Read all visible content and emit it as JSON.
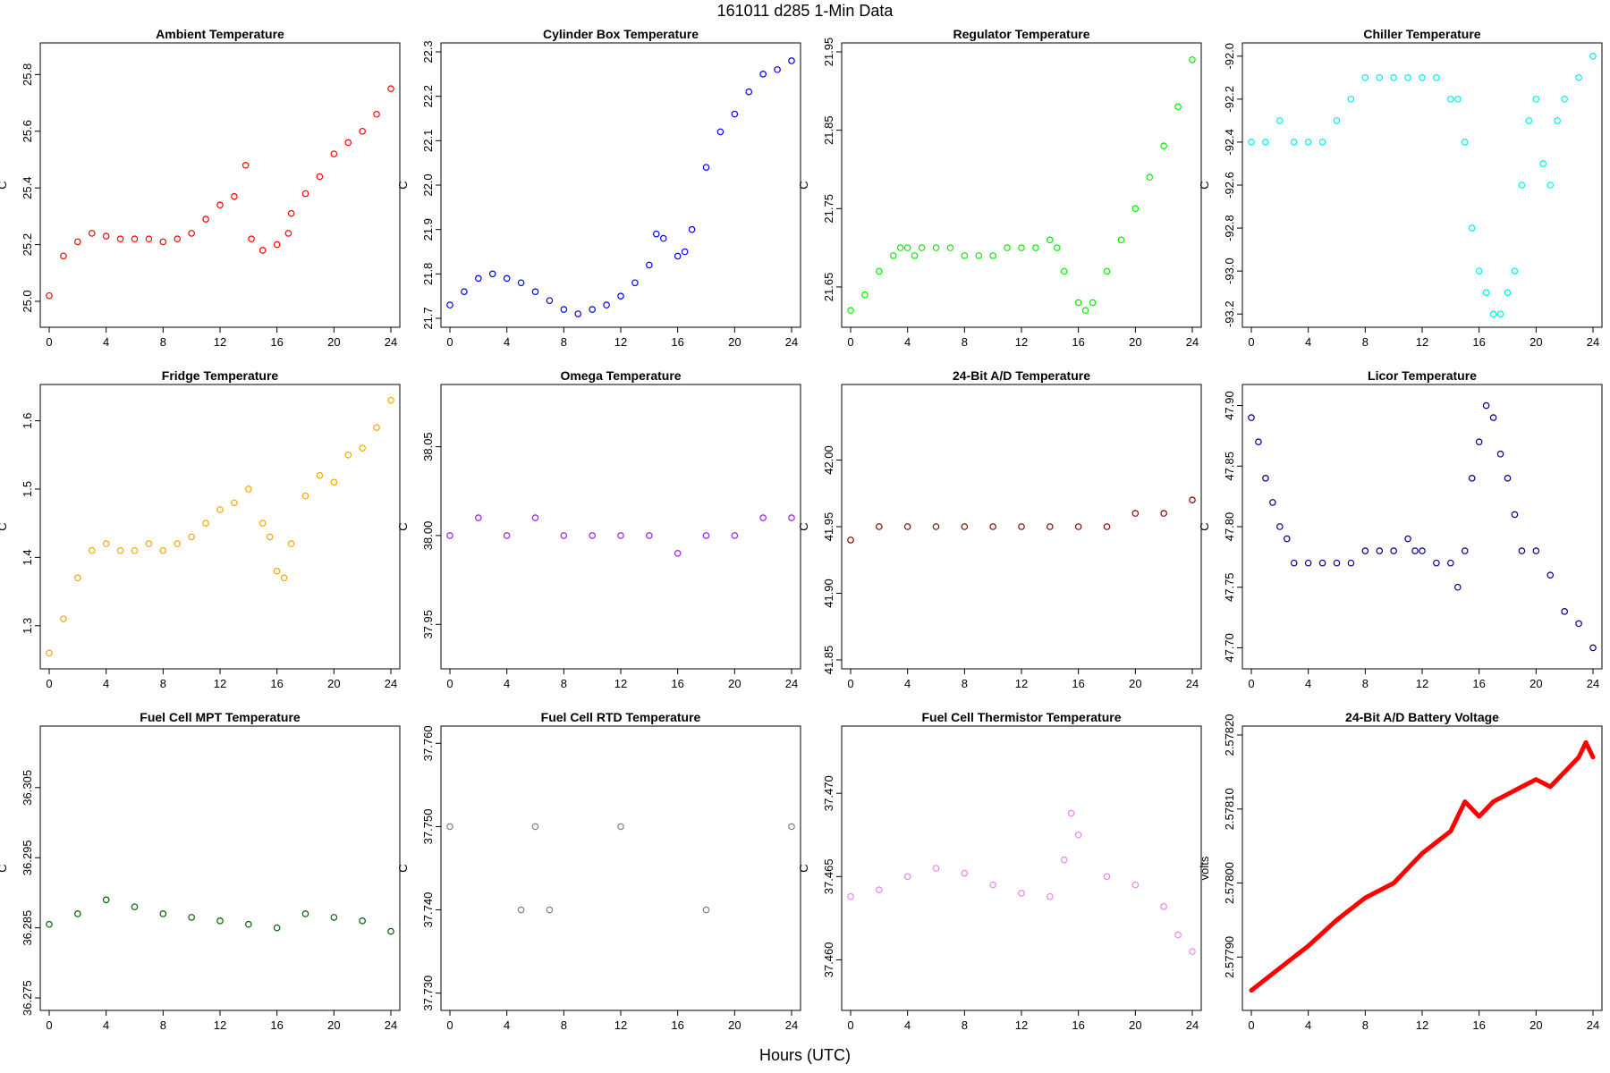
{
  "header": {
    "title": "161011    d285    1-Min Data"
  },
  "footer": {
    "xlabel": "Hours (UTC)"
  },
  "chart_data": [
    {
      "type": "scatter",
      "title": "Ambient Temperature",
      "ylabel": "C",
      "color": "#ff0000",
      "marker": "open-circle",
      "xlim": [
        0,
        24
      ],
      "ylim": [
        24.94,
        25.88
      ],
      "xticks": [
        "0",
        "4",
        "8",
        "12",
        "16",
        "20",
        "24"
      ],
      "yticks": [
        "25.0",
        "25.2",
        "25.4",
        "25.6",
        "25.8"
      ],
      "x": [
        0,
        1,
        2,
        3,
        4,
        5,
        6,
        7,
        8,
        9,
        10,
        11,
        12,
        13,
        13.8,
        14.2,
        15,
        16,
        16.8,
        17,
        18,
        19,
        20,
        21,
        22,
        23,
        24
      ],
      "y": [
        25.02,
        25.16,
        25.21,
        25.24,
        25.23,
        25.22,
        25.22,
        25.22,
        25.21,
        25.22,
        25.24,
        25.29,
        25.34,
        25.37,
        25.48,
        25.22,
        25.18,
        25.2,
        25.24,
        25.31,
        25.38,
        25.44,
        25.52,
        25.56,
        25.6,
        25.66,
        25.75
      ]
    },
    {
      "type": "scatter",
      "title": "Cylinder Box Temperature",
      "ylabel": "C",
      "color": "#0000ff",
      "marker": "open-circle",
      "xlim": [
        0,
        24
      ],
      "ylim": [
        21.7,
        22.3
      ],
      "xticks": [
        "0",
        "4",
        "8",
        "12",
        "16",
        "20",
        "24"
      ],
      "yticks": [
        "21.7",
        "21.8",
        "21.9",
        "22.0",
        "22.1",
        "22.2",
        "22.3"
      ],
      "x": [
        0,
        1,
        2,
        3,
        4,
        5,
        6,
        7,
        8,
        9,
        10,
        11,
        12,
        13,
        14,
        14.5,
        15,
        16,
        16.5,
        17,
        18,
        19,
        20,
        21,
        22,
        23,
        24
      ],
      "y": [
        21.73,
        21.76,
        21.79,
        21.8,
        21.79,
        21.78,
        21.76,
        21.74,
        21.72,
        21.71,
        21.72,
        21.73,
        21.75,
        21.78,
        21.82,
        21.89,
        21.88,
        21.84,
        21.85,
        21.9,
        22.04,
        22.12,
        22.16,
        22.21,
        22.25,
        22.26,
        22.28
      ]
    },
    {
      "type": "scatter",
      "title": "Regulator Temperature",
      "ylabel": "C",
      "color": "#00ee00",
      "marker": "open-circle",
      "xlim": [
        0,
        24
      ],
      "ylim": [
        21.61,
        21.95
      ],
      "xticks": [
        "0",
        "4",
        "8",
        "12",
        "16",
        "20",
        "24"
      ],
      "yticks": [
        "21.65",
        "21.75",
        "21.85",
        "21.95"
      ],
      "x": [
        0,
        1,
        2,
        3,
        3.5,
        4,
        4.5,
        5,
        6,
        7,
        8,
        9,
        10,
        11,
        12,
        13,
        14,
        14.5,
        15,
        16,
        16.5,
        17,
        18,
        19,
        20,
        21,
        22,
        23,
        24
      ],
      "y": [
        21.62,
        21.64,
        21.67,
        21.69,
        21.7,
        21.7,
        21.69,
        21.7,
        21.7,
        21.7,
        21.69,
        21.69,
        21.69,
        21.7,
        21.7,
        21.7,
        21.71,
        21.7,
        21.67,
        21.63,
        21.62,
        21.63,
        21.67,
        21.71,
        21.75,
        21.79,
        21.83,
        21.88,
        21.94
      ]
    },
    {
      "type": "scatter",
      "title": "Chiller Temperature",
      "ylabel": "C",
      "color": "#00eeee",
      "marker": "open-circle",
      "xlim": [
        0,
        24
      ],
      "ylim": [
        -93.22,
        -91.98
      ],
      "xticks": [
        "0",
        "4",
        "8",
        "12",
        "16",
        "20",
        "24"
      ],
      "yticks": [
        "-92.0",
        "-92.2",
        "-92.4",
        "-92.6",
        "-92.8",
        "-93.0",
        "-93.2"
      ],
      "x": [
        0,
        1,
        2,
        3,
        4,
        5,
        6,
        7,
        8,
        9,
        10,
        11,
        12,
        13,
        14,
        14.5,
        15,
        15.5,
        16,
        16.5,
        17,
        17.5,
        18,
        18.5,
        19,
        19.5,
        20,
        20.5,
        21,
        21.5,
        22,
        23,
        24
      ],
      "y": [
        -92.4,
        -92.4,
        -92.3,
        -92.4,
        -92.4,
        -92.4,
        -92.3,
        -92.2,
        -92.1,
        -92.1,
        -92.1,
        -92.1,
        -92.1,
        -92.1,
        -92.2,
        -92.2,
        -92.4,
        -92.8,
        -93.0,
        -93.1,
        -93.2,
        -93.2,
        -93.1,
        -93.0,
        -92.6,
        -92.3,
        -92.2,
        -92.5,
        -92.6,
        -92.3,
        -92.2,
        -92.1,
        -92.0
      ]
    },
    {
      "type": "scatter",
      "title": "Fridge Temperature",
      "ylabel": "C",
      "color": "#ffa500",
      "marker": "open-circle",
      "xlim": [
        0,
        24
      ],
      "ylim": [
        1.25,
        1.64
      ],
      "xticks": [
        "0",
        "4",
        "8",
        "12",
        "16",
        "20",
        "24"
      ],
      "yticks": [
        "1.3",
        "1.4",
        "1.5",
        "1.6"
      ],
      "x": [
        0,
        1,
        2,
        3,
        4,
        5,
        6,
        7,
        8,
        9,
        10,
        11,
        12,
        13,
        14,
        15,
        15.5,
        16,
        16.5,
        17,
        18,
        19,
        20,
        21,
        22,
        23,
        24
      ],
      "y": [
        1.26,
        1.31,
        1.37,
        1.41,
        1.42,
        1.41,
        1.41,
        1.42,
        1.41,
        1.42,
        1.43,
        1.45,
        1.47,
        1.48,
        1.5,
        1.45,
        1.43,
        1.38,
        1.37,
        1.42,
        1.49,
        1.52,
        1.51,
        1.55,
        1.56,
        1.59,
        1.63
      ]
    },
    {
      "type": "scatter",
      "title": "Omega Temperature",
      "ylabel": "C",
      "color": "#a020f0",
      "marker": "open-circle",
      "xlim": [
        0,
        24
      ],
      "ylim": [
        37.93,
        38.08
      ],
      "xticks": [
        "0",
        "4",
        "8",
        "12",
        "16",
        "20",
        "24"
      ],
      "yticks": [
        "37.95",
        "38.00",
        "38.05"
      ],
      "x": [
        0,
        2,
        4,
        6,
        8,
        10,
        12,
        14,
        16,
        18,
        20,
        22,
        24
      ],
      "y": [
        38.0,
        38.01,
        38.0,
        38.01,
        38.0,
        38.0,
        38.0,
        38.0,
        37.99,
        38.0,
        38.0,
        38.01,
        38.01
      ]
    },
    {
      "type": "scatter",
      "title": "24-Bit A/D Temperature",
      "ylabel": "C",
      "color": "#8b0000",
      "marker": "open-circle",
      "xlim": [
        0,
        24
      ],
      "ylim": [
        41.85,
        42.05
      ],
      "xticks": [
        "0",
        "4",
        "8",
        "12",
        "16",
        "20",
        "24"
      ],
      "yticks": [
        "41.85",
        "41.90",
        "41.95",
        "42.00"
      ],
      "x": [
        0,
        2,
        4,
        6,
        8,
        10,
        12,
        14,
        16,
        18,
        20,
        22,
        24
      ],
      "y": [
        41.94,
        41.95,
        41.95,
        41.95,
        41.95,
        41.95,
        41.95,
        41.95,
        41.95,
        41.95,
        41.96,
        41.96,
        41.97
      ]
    },
    {
      "type": "scatter",
      "title": "Licor Temperature",
      "ylabel": "C",
      "color": "#00008b",
      "marker": "open-circle",
      "xlim": [
        0,
        24
      ],
      "ylim": [
        47.69,
        47.91
      ],
      "xticks": [
        "0",
        "4",
        "8",
        "12",
        "16",
        "20",
        "24"
      ],
      "yticks": [
        "47.70",
        "47.75",
        "47.80",
        "47.85",
        "47.90"
      ],
      "x": [
        0,
        0.5,
        1,
        1.5,
        2,
        2.5,
        3,
        4,
        5,
        6,
        7,
        8,
        9,
        10,
        11,
        11.5,
        12,
        13,
        14,
        14.5,
        15,
        15.5,
        16,
        16.5,
        17,
        17.5,
        18,
        18.5,
        19,
        20,
        21,
        22,
        23,
        24
      ],
      "y": [
        47.89,
        47.87,
        47.84,
        47.82,
        47.8,
        47.79,
        47.77,
        47.77,
        47.77,
        47.77,
        47.77,
        47.78,
        47.78,
        47.78,
        47.79,
        47.78,
        47.78,
        47.77,
        47.77,
        47.75,
        47.78,
        47.84,
        47.87,
        47.9,
        47.89,
        47.86,
        47.84,
        47.81,
        47.78,
        47.78,
        47.76,
        47.73,
        47.72,
        47.7
      ]
    },
    {
      "type": "scatter",
      "title": "Fuel Cell MPT Temperature",
      "ylabel": "C",
      "color": "#006400",
      "marker": "open-circle",
      "xlim": [
        0,
        24
      ],
      "ylim": [
        36.2745,
        36.3125
      ],
      "xticks": [
        "0",
        "4",
        "8",
        "12",
        "16",
        "20",
        "24"
      ],
      "yticks": [
        "36.275",
        "36.285",
        "36.295",
        "36.305"
      ],
      "x": [
        0,
        2,
        4,
        6,
        8,
        10,
        12,
        14,
        16,
        18,
        20,
        22,
        24
      ],
      "y": [
        36.2855,
        36.287,
        36.289,
        36.288,
        36.287,
        36.2865,
        36.286,
        36.2855,
        36.285,
        36.287,
        36.2865,
        36.286,
        36.2845
      ]
    },
    {
      "type": "scatter",
      "title": "Fuel Cell RTD Temperature",
      "ylabel": "C",
      "color": "#808080",
      "marker": "open-circle",
      "xlim": [
        0,
        24
      ],
      "ylim": [
        37.729,
        37.761
      ],
      "xticks": [
        "0",
        "4",
        "8",
        "12",
        "16",
        "20",
        "24"
      ],
      "yticks": [
        "37.730",
        "37.740",
        "37.750",
        "37.760"
      ],
      "x": [
        0,
        5,
        6,
        7,
        12,
        18,
        24
      ],
      "y": [
        37.75,
        37.74,
        37.75,
        37.74,
        37.75,
        37.74,
        37.75
      ]
    },
    {
      "type": "scatter",
      "title": "Fuel Cell Thermistor Temperature",
      "ylabel": "C",
      "color": "#ee82ee",
      "marker": "open-circle",
      "xlim": [
        0,
        24
      ],
      "ylim": [
        37.4575,
        37.4735
      ],
      "xticks": [
        "0",
        "4",
        "8",
        "12",
        "16",
        "20",
        "24"
      ],
      "yticks": [
        "37.460",
        "37.465",
        "37.470"
      ],
      "x": [
        0,
        2,
        4,
        6,
        8,
        10,
        12,
        14,
        15,
        15.5,
        16,
        18,
        20,
        22,
        23,
        24
      ],
      "y": [
        37.4638,
        37.4642,
        37.465,
        37.4655,
        37.4652,
        37.4645,
        37.464,
        37.4638,
        37.466,
        37.4688,
        37.4675,
        37.465,
        37.4645,
        37.4632,
        37.4615,
        37.4605
      ]
    },
    {
      "type": "line",
      "title": "24-Bit A/D Battery Voltage",
      "ylabel": "volts",
      "color": "#ff0000",
      "marker": "filled",
      "xlim": [
        0,
        24
      ],
      "ylim": [
        2.57784,
        2.5782
      ],
      "xticks": [
        "0",
        "4",
        "8",
        "12",
        "16",
        "20",
        "24"
      ],
      "yticks": [
        "2.57790",
        "2.57800",
        "2.57810",
        "2.57820"
      ],
      "x": [
        0,
        2,
        4,
        6,
        8,
        10,
        12,
        14,
        15,
        16,
        17,
        18,
        19,
        20,
        21,
        22,
        23,
        23.5,
        24
      ],
      "y": [
        2.577855,
        2.577885,
        2.577915,
        2.57795,
        2.57798,
        2.578,
        2.57804,
        2.57807,
        2.57811,
        2.57809,
        2.57811,
        2.57812,
        2.57813,
        2.57814,
        2.57813,
        2.57815,
        2.57817,
        2.57819,
        2.57817
      ]
    }
  ]
}
